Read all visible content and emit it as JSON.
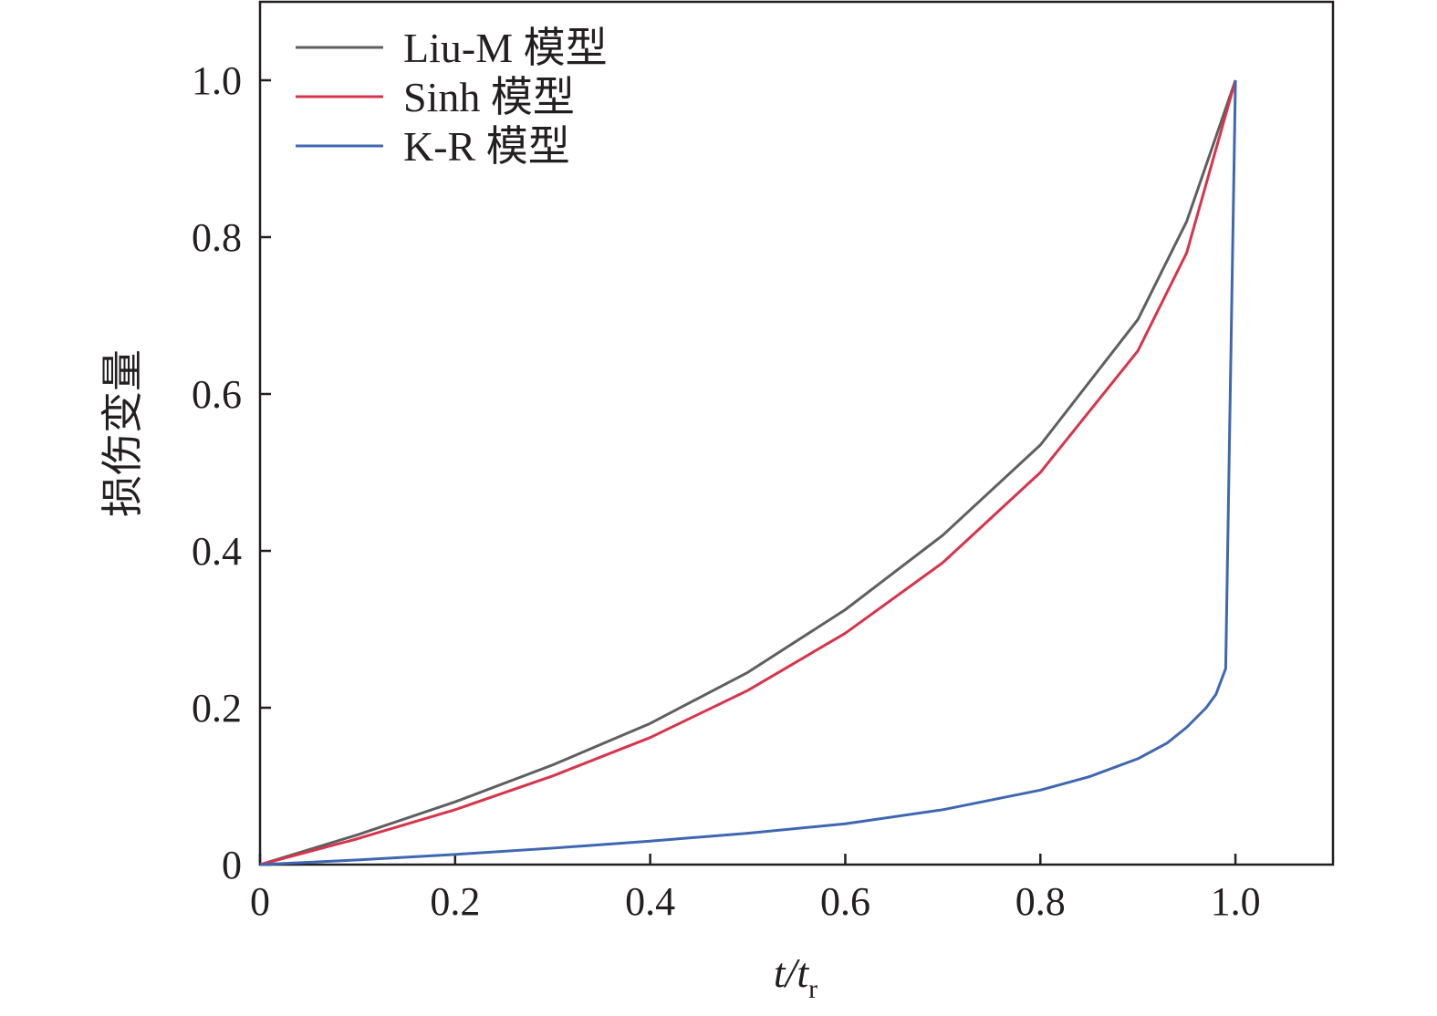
{
  "chart_data": {
    "type": "line",
    "title": "",
    "xlabel": "t/t_r",
    "xlabel_main": "t/t",
    "xlabel_sub": "r",
    "ylabel": "损伤变量",
    "xlim": [
      0,
      1.1
    ],
    "ylim": [
      0,
      1.1
    ],
    "grid": false,
    "legend_position": "top-left",
    "xticks": [
      0,
      0.2,
      0.4,
      0.6,
      0.8,
      1.0
    ],
    "xtick_labels": [
      "0",
      "0.2",
      "0.4",
      "0.6",
      "0.8",
      "1.0"
    ],
    "yticks": [
      0,
      0.2,
      0.4,
      0.6,
      0.8,
      1.0
    ],
    "ytick_labels": [
      "0",
      "0.2",
      "0.4",
      "0.6",
      "0.8",
      "1.0"
    ],
    "series": [
      {
        "name": "Liu-M 模型",
        "color": "#5f5f5f",
        "x": [
          0,
          0.1,
          0.2,
          0.3,
          0.4,
          0.5,
          0.6,
          0.7,
          0.8,
          0.9,
          0.95,
          1.0
        ],
        "y": [
          0,
          0.038,
          0.08,
          0.127,
          0.18,
          0.245,
          0.325,
          0.42,
          0.535,
          0.695,
          0.82,
          1.0
        ]
      },
      {
        "name": "Sinh 模型",
        "color": "#d7344a",
        "x": [
          0,
          0.1,
          0.2,
          0.3,
          0.4,
          0.5,
          0.6,
          0.7,
          0.8,
          0.9,
          0.95,
          1.0
        ],
        "y": [
          0,
          0.033,
          0.07,
          0.113,
          0.162,
          0.222,
          0.295,
          0.385,
          0.5,
          0.655,
          0.78,
          1.0
        ]
      },
      {
        "name": "K-R 模型",
        "color": "#3f67b1",
        "x": [
          0,
          0.1,
          0.2,
          0.3,
          0.4,
          0.5,
          0.6,
          0.7,
          0.8,
          0.85,
          0.9,
          0.93,
          0.95,
          0.97,
          0.98,
          0.99,
          1.0
        ],
        "y": [
          0,
          0.006,
          0.013,
          0.021,
          0.03,
          0.04,
          0.052,
          0.07,
          0.095,
          0.112,
          0.135,
          0.155,
          0.175,
          0.2,
          0.217,
          0.25,
          1.0
        ]
      }
    ]
  }
}
